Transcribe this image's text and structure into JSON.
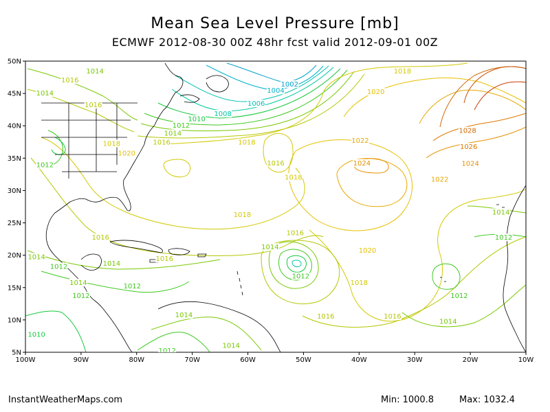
{
  "title": "Mean Sea Level Pressure [mb]",
  "subtitle": "ECMWF 2012-08-30 00Z 48hr fcst valid 2012-09-01 00Z",
  "footer": {
    "credit": "InstantWeatherMaps.com",
    "min_text": "Min: 1000.8",
    "max_text": "Max: 1032.4"
  },
  "map": {
    "lon_range": [
      -100,
      -10
    ],
    "lat_range": [
      5,
      50
    ],
    "lon_ticks": [
      "100W",
      "90W",
      "80W",
      "70W",
      "60W",
      "50W",
      "40W",
      "30W",
      "20W",
      "10W"
    ],
    "lat_ticks": [
      "5N",
      "10N",
      "15N",
      "20N",
      "25N",
      "30N",
      "35N",
      "40N",
      "45N",
      "50N"
    ]
  },
  "colors": {
    "1002": "#00a0c8",
    "1004": "#00b4c8",
    "1006": "#00c0b4",
    "1008": "#00c8a0",
    "1010": "#14c83c",
    "1012": "#3cc81e",
    "1014": "#78c800",
    "1016": "#b4c800",
    "1018": "#d2c800",
    "1020": "#e6c000",
    "1022": "#e6a800",
    "1024": "#e69000",
    "1026": "#dc7800",
    "1028": "#d26400",
    "coast": "#000000"
  },
  "contour_labels": [
    {
      "text": "1002",
      "lon": -52.5,
      "lat": 46.2
    },
    {
      "text": "1004",
      "lon": -55.0,
      "lat": 45.2
    },
    {
      "text": "1006",
      "lon": -58.5,
      "lat": 43.2
    },
    {
      "text": "1008",
      "lon": -64.5,
      "lat": 41.6
    },
    {
      "text": "1010",
      "lon": -69.2,
      "lat": 40.8
    },
    {
      "text": "1012",
      "lon": -72.0,
      "lat": 39.8
    },
    {
      "text": "1014",
      "lon": -73.5,
      "lat": 38.6
    },
    {
      "text": "1016",
      "lon": -75.5,
      "lat": 37.2
    },
    {
      "text": "1018",
      "lon": -60.2,
      "lat": 37.2
    },
    {
      "text": "1016",
      "lon": -55.0,
      "lat": 34.0
    },
    {
      "text": "1018",
      "lon": -51.8,
      "lat": 31.8
    },
    {
      "text": "1020",
      "lon": -81.8,
      "lat": 35.5
    },
    {
      "text": "1018",
      "lon": -84.5,
      "lat": 37.0
    },
    {
      "text": "1016",
      "lon": -92.0,
      "lat": 46.8
    },
    {
      "text": "1014",
      "lon": -96.5,
      "lat": 44.8
    },
    {
      "text": "1014",
      "lon": -87.5,
      "lat": 48.2
    },
    {
      "text": "1016",
      "lon": -87.8,
      "lat": 43.0
    },
    {
      "text": "1012",
      "lon": -96.5,
      "lat": 33.7
    },
    {
      "text": "1018",
      "lon": -32.2,
      "lat": 48.2
    },
    {
      "text": "1020",
      "lon": -37.0,
      "lat": 45.0
    },
    {
      "text": "1022",
      "lon": -39.8,
      "lat": 37.5
    },
    {
      "text": "1024",
      "lon": -39.5,
      "lat": 34.0
    },
    {
      "text": "1028",
      "lon": -20.5,
      "lat": 39.0
    },
    {
      "text": "1026",
      "lon": -20.3,
      "lat": 36.5
    },
    {
      "text": "1024",
      "lon": -20.0,
      "lat": 33.9
    },
    {
      "text": "1022",
      "lon": -25.5,
      "lat": 31.5
    },
    {
      "text": "1014",
      "lon": -14.5,
      "lat": 26.4
    },
    {
      "text": "1012",
      "lon": -14.0,
      "lat": 22.5
    },
    {
      "text": "1018",
      "lon": -61.0,
      "lat": 26.0
    },
    {
      "text": "1016",
      "lon": -51.5,
      "lat": 23.2
    },
    {
      "text": "1014",
      "lon": -56.0,
      "lat": 21.0
    },
    {
      "text": "1020",
      "lon": -38.5,
      "lat": 20.5
    },
    {
      "text": "1018",
      "lon": -40.0,
      "lat": 15.5
    },
    {
      "text": "1012",
      "lon": -50.5,
      "lat": 16.5
    },
    {
      "text": "1016",
      "lon": -86.5,
      "lat": 22.5
    },
    {
      "text": "1016",
      "lon": -75.0,
      "lat": 19.2
    },
    {
      "text": "1014",
      "lon": -84.5,
      "lat": 18.5
    },
    {
      "text": "1014",
      "lon": -98.0,
      "lat": 19.5
    },
    {
      "text": "1012",
      "lon": -94.0,
      "lat": 18.0
    },
    {
      "text": "1014",
      "lon": -90.5,
      "lat": 15.5
    },
    {
      "text": "1012",
      "lon": -90.0,
      "lat": 13.5
    },
    {
      "text": "1012",
      "lon": -80.8,
      "lat": 15.0
    },
    {
      "text": "1014",
      "lon": -71.5,
      "lat": 10.5
    },
    {
      "text": "1014",
      "lon": -63.0,
      "lat": 5.8
    },
    {
      "text": "1016",
      "lon": -46.0,
      "lat": 10.3
    },
    {
      "text": "1016",
      "lon": -34.0,
      "lat": 10.3
    },
    {
      "text": "1014",
      "lon": -24.0,
      "lat": 9.5
    },
    {
      "text": "1012",
      "lon": -22.0,
      "lat": 13.5
    },
    {
      "text": "1012",
      "lon": -74.5,
      "lat": 5.0
    },
    {
      "text": "1010",
      "lon": -98.0,
      "lat": 7.5
    }
  ]
}
